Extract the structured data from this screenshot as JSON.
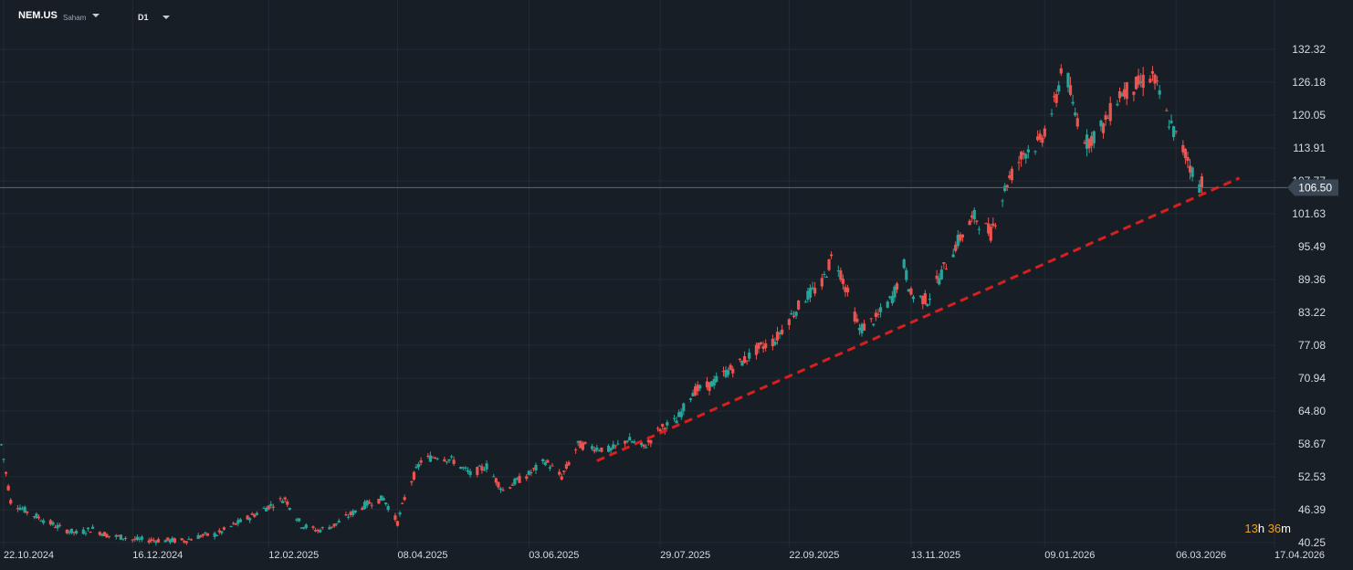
{
  "header": {
    "symbol": "NEM.US",
    "symbol_type": "Saham",
    "timeframe": "D1"
  },
  "countdown": {
    "hours": "13",
    "h_unit": "h",
    "minutes": "36",
    "m_unit": "m"
  },
  "colors": {
    "background": "#181e25",
    "grid": "#232b35",
    "up": "#26a69a",
    "down": "#ef5350",
    "trendline": "#d81e1e",
    "price_line": "#5a6878",
    "price_label_bg": "#3a4654"
  },
  "chart_data": {
    "type": "candlestick",
    "title": "",
    "xlabel": "",
    "ylabel": "",
    "ylim": [
      40.25,
      134.5
    ],
    "y_ticks": [
      "132.32",
      "126.18",
      "120.05",
      "113.91",
      "107.77",
      "101.63",
      "95.49",
      "89.36",
      "83.22",
      "77.08",
      "70.94",
      "64.80",
      "58.67",
      "52.53",
      "46.39",
      "40.25"
    ],
    "x_ticks": [
      "22.10.2024",
      "16.12.2024",
      "12.02.2025",
      "08.04.2025",
      "03.06.2025",
      "29.07.2025",
      "22.09.2025",
      "13.11.2025",
      "09.01.2026",
      "06.03.2026",
      "17.04.2026"
    ],
    "current_price": "106.50",
    "grid": true,
    "trendline": {
      "start": [
        "2025-07-02",
        55.5
      ],
      "end": [
        "2026-04-02",
        108.3
      ],
      "style": "dashed"
    },
    "series": [
      {
        "values": [
          [
            "2024-10-21",
            58.5
          ],
          [
            "2024-10-25",
            48.0
          ],
          [
            "2024-11-01",
            46.0
          ],
          [
            "2024-11-08",
            44.5
          ],
          [
            "2024-11-15",
            43.0
          ],
          [
            "2024-11-22",
            42.0
          ],
          [
            "2024-11-29",
            42.8
          ],
          [
            "2024-12-06",
            41.5
          ],
          [
            "2024-12-13",
            41.2
          ],
          [
            "2024-12-16",
            40.8
          ],
          [
            "2025-01-07",
            40.6
          ],
          [
            "2025-01-14",
            41.5
          ],
          [
            "2025-01-21",
            41.8
          ],
          [
            "2025-01-28",
            43.5
          ],
          [
            "2025-02-04",
            45.0
          ],
          [
            "2025-02-12",
            47.0
          ],
          [
            "2025-02-19",
            48.5
          ],
          [
            "2025-02-26",
            43.5
          ],
          [
            "2025-03-05",
            42.5
          ],
          [
            "2025-03-12",
            43.5
          ],
          [
            "2025-03-19",
            45.5
          ],
          [
            "2025-03-26",
            47.5
          ],
          [
            "2025-04-02",
            48.5
          ],
          [
            "2025-04-08",
            44.0
          ],
          [
            "2025-04-12",
            50.0
          ],
          [
            "2025-04-18",
            55.5
          ],
          [
            "2025-04-25",
            56.5
          ],
          [
            "2025-05-02",
            55.5
          ],
          [
            "2025-05-09",
            53.0
          ],
          [
            "2025-05-16",
            54.5
          ],
          [
            "2025-05-23",
            50.0
          ],
          [
            "2025-05-28",
            51.5
          ],
          [
            "2025-06-03",
            53.0
          ],
          [
            "2025-06-10",
            55.5
          ],
          [
            "2025-06-17",
            52.5
          ],
          [
            "2025-06-24",
            58.5
          ],
          [
            "2025-07-01",
            58.0
          ],
          [
            "2025-07-08",
            57.5
          ],
          [
            "2025-07-15",
            59.5
          ],
          [
            "2025-07-22",
            58.0
          ],
          [
            "2025-07-29",
            61.5
          ],
          [
            "2025-08-05",
            63.0
          ],
          [
            "2025-08-12",
            68.5
          ],
          [
            "2025-08-19",
            69.5
          ],
          [
            "2025-08-26",
            72.0
          ],
          [
            "2025-09-02",
            74.0
          ],
          [
            "2025-09-09",
            76.5
          ],
          [
            "2025-09-16",
            78.0
          ],
          [
            "2025-09-22",
            82.0
          ],
          [
            "2025-09-29",
            86.0
          ],
          [
            "2025-10-06",
            88.5
          ],
          [
            "2025-10-11",
            94.5
          ],
          [
            "2025-10-16",
            88.0
          ],
          [
            "2025-10-22",
            80.0
          ],
          [
            "2025-10-29",
            82.0
          ],
          [
            "2025-11-05",
            86.0
          ],
          [
            "2025-11-10",
            92.0
          ],
          [
            "2025-11-13",
            86.5
          ],
          [
            "2025-11-20",
            85.5
          ],
          [
            "2025-11-26",
            90.5
          ],
          [
            "2025-12-03",
            96.5
          ],
          [
            "2025-12-10",
            101.0
          ],
          [
            "2025-12-17",
            98.0
          ],
          [
            "2025-12-24",
            107.5
          ],
          [
            "2025-12-31",
            113.0
          ],
          [
            "2026-01-07",
            115.0
          ],
          [
            "2026-01-14",
            123.0
          ],
          [
            "2026-01-17",
            131.5
          ],
          [
            "2026-01-21",
            121.5
          ],
          [
            "2026-01-27",
            115.0
          ],
          [
            "2026-02-03",
            118.0
          ],
          [
            "2026-02-10",
            124.0
          ],
          [
            "2026-02-17",
            125.5
          ],
          [
            "2026-02-24",
            127.5
          ],
          [
            "2026-03-02",
            120.0
          ],
          [
            "2026-03-06",
            116.0
          ],
          [
            "2026-03-11",
            112.0
          ],
          [
            "2026-03-14",
            108.0
          ],
          [
            "2026-03-17",
            106.5
          ]
        ]
      }
    ]
  }
}
